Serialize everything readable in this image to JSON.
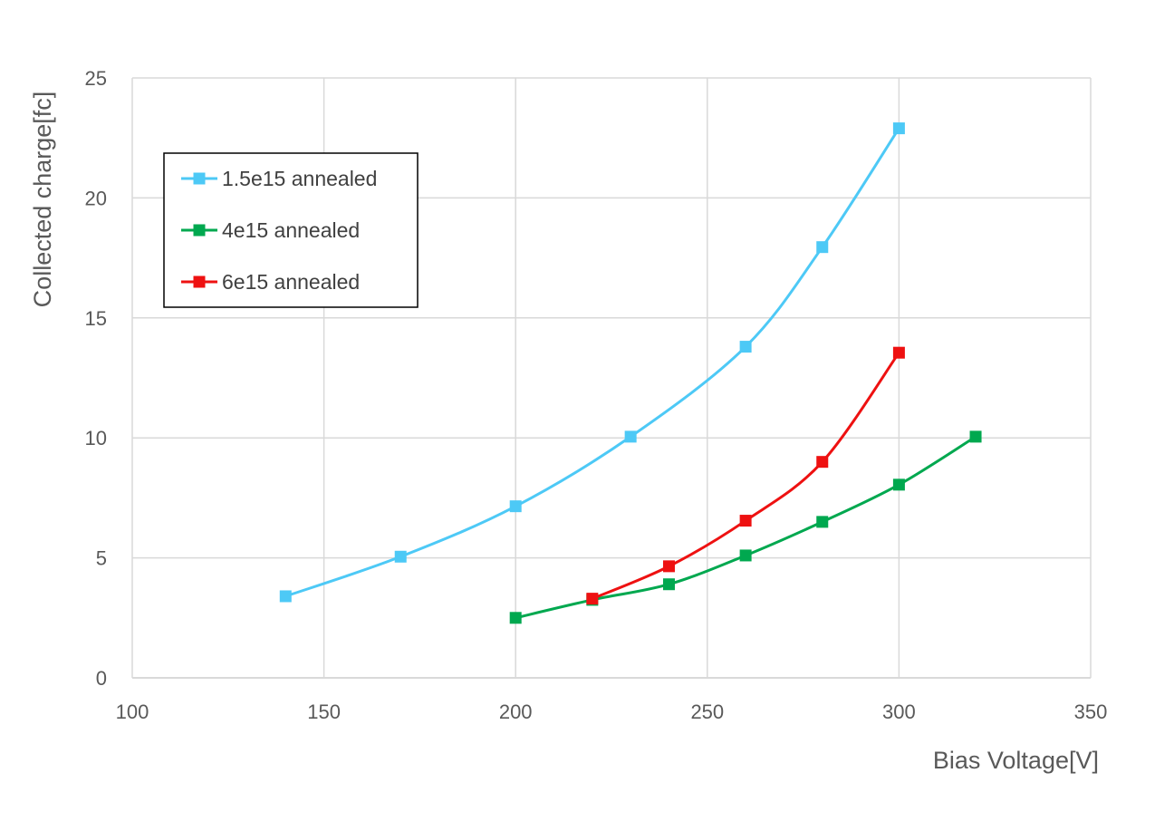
{
  "chart_data": {
    "type": "line",
    "xlabel": "Bias Voltage[V]",
    "ylabel": "Collected charge[fc]",
    "xlim": [
      100,
      350
    ],
    "ylim": [
      0,
      25
    ],
    "xticks": [
      100,
      150,
      200,
      250,
      300,
      350
    ],
    "yticks": [
      0,
      5,
      10,
      15,
      20,
      25
    ],
    "grid": true,
    "legend_position": "top-left",
    "series": [
      {
        "name": "1.5e15 annealed",
        "color": "#4dc9f6",
        "x": [
          140,
          170,
          200,
          230,
          260,
          280,
          300
        ],
        "y": [
          3.4,
          5.05,
          7.15,
          10.05,
          13.8,
          17.95,
          22.9
        ]
      },
      {
        "name": "4e15 annealed",
        "color": "#00a84f",
        "x": [
          200,
          220,
          240,
          260,
          280,
          300,
          320
        ],
        "y": [
          2.5,
          3.25,
          3.9,
          5.1,
          6.5,
          8.05,
          10.05
        ]
      },
      {
        "name": "6e15 annealed",
        "color": "#ee1111",
        "x": [
          220,
          240,
          260,
          280,
          300
        ],
        "y": [
          3.3,
          4.65,
          6.55,
          9.0,
          13.55
        ]
      }
    ]
  }
}
